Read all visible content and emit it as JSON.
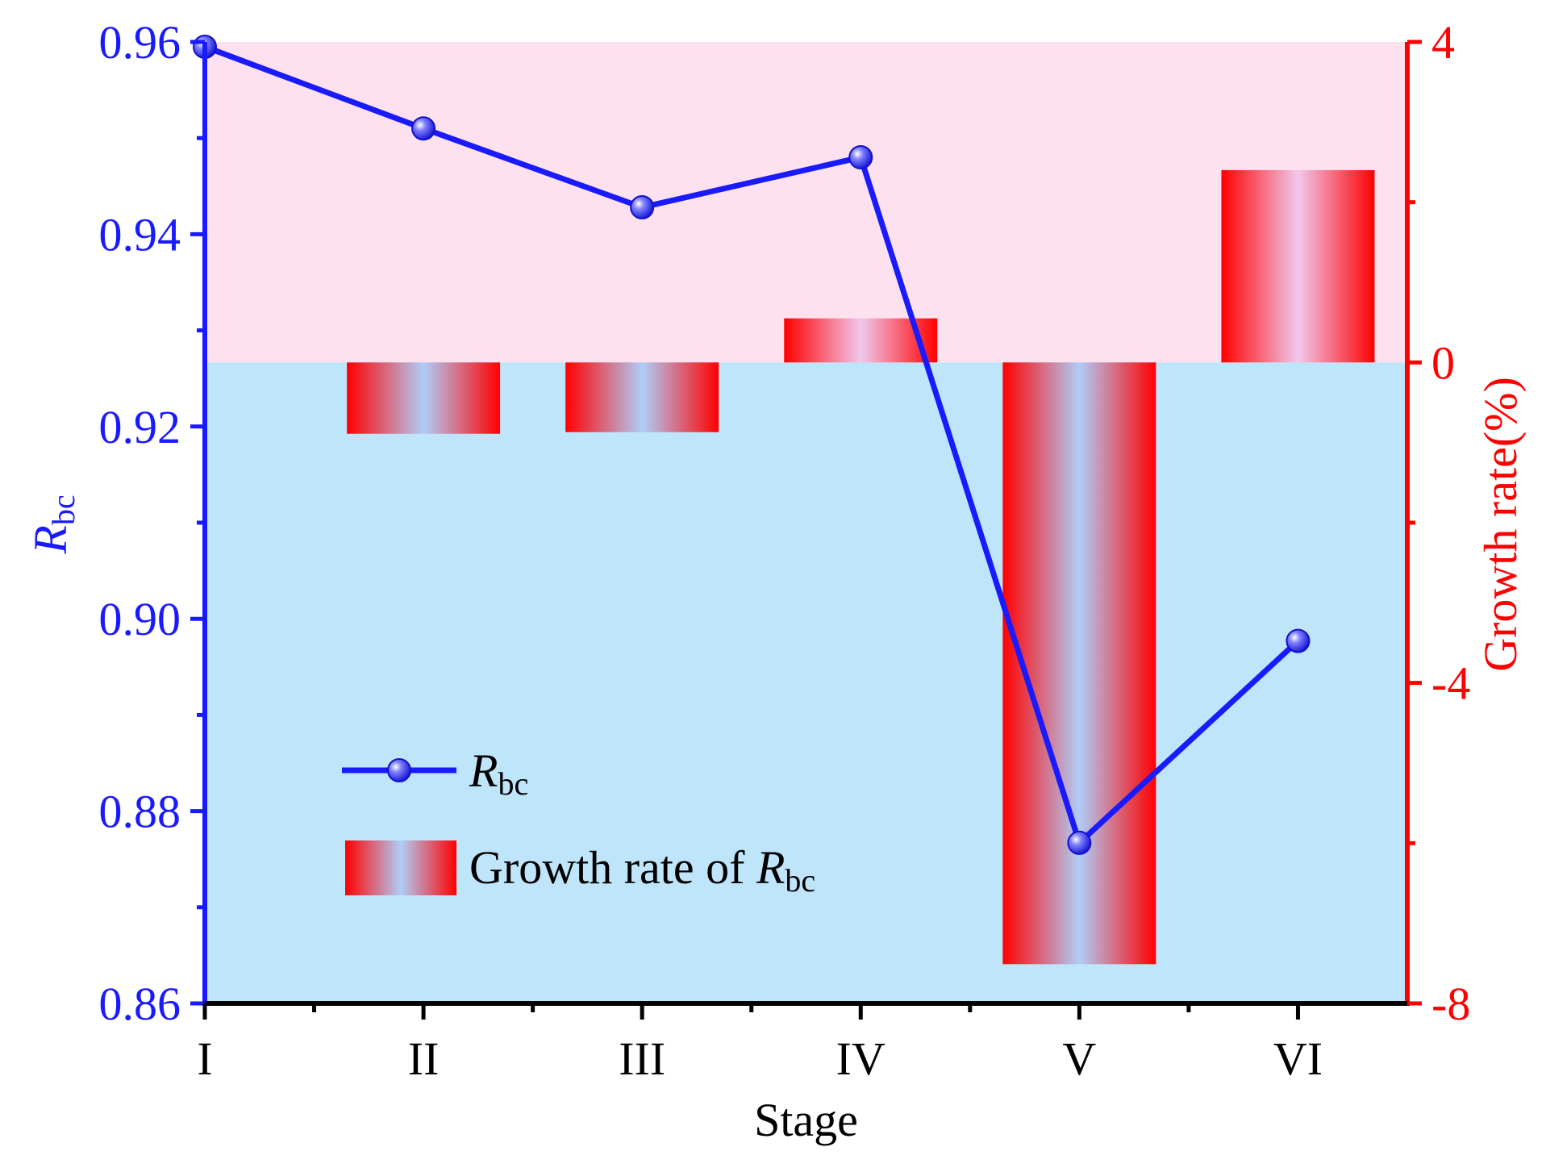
{
  "chart_data": {
    "type": "bar+line",
    "categories": [
      "I",
      "II",
      "III",
      "IV",
      "V",
      "VI"
    ],
    "xlabel": "Stage",
    "ylabel_left": {
      "main": "R",
      "sub": "bc"
    },
    "ylabel_right": "Growth rate(%)",
    "ylim_left": [
      0.86,
      0.96
    ],
    "yticks_left": [
      "0.86",
      "0.88",
      "0.90",
      "0.92",
      "0.94",
      "0.96"
    ],
    "ylim_right": [
      -8,
      4
    ],
    "yticks_right": [
      "-8",
      "-4",
      "0",
      "4"
    ],
    "series": [
      {
        "name": {
          "main": "R",
          "sub": "bc"
        },
        "type": "line",
        "axis": "left",
        "values": [
          0.9595,
          0.951,
          0.9428,
          0.948,
          0.8767,
          0.8977
        ]
      },
      {
        "name": {
          "prefix": "Growth rate of ",
          "main": "R",
          "sub": "bc"
        },
        "type": "bar",
        "axis": "right",
        "values": [
          null,
          -0.89,
          -0.87,
          0.55,
          -7.51,
          2.4
        ]
      }
    ],
    "background": {
      "above_zero": "#fde1ef",
      "below_zero": "#bfe5fb"
    },
    "legend_position": "lower-left",
    "colors": {
      "line": "#1a1aff",
      "bar_edge": "#ff0000",
      "bar_center_positive": "#f0c8ec",
      "bar_center_negative": "#b0cdf7",
      "left_axis": "#1a1aff",
      "right_axis": "#ff0000",
      "bottom_axis": "#000000"
    }
  }
}
